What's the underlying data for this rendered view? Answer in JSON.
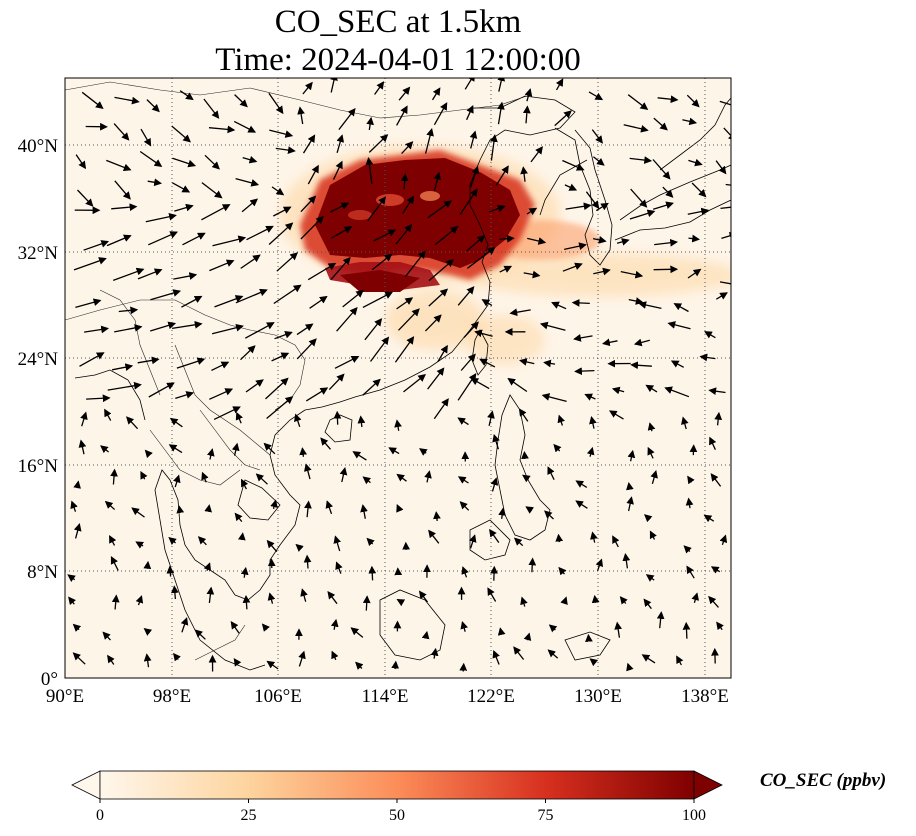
{
  "title": {
    "line1": "CO_SEC at 1.5km",
    "line2": "Time: 2024-04-01 12:00:00"
  },
  "map": {
    "variable": "CO_SEC",
    "level": "1.5km",
    "time": "2024-04-01 12:00:00",
    "lon_range": [
      90,
      140
    ],
    "lat_range": [
      0,
      45
    ],
    "gridlines": true,
    "x_ticks": [
      "90°E",
      "98°E",
      "106°E",
      "114°E",
      "122°E",
      "130°E",
      "138°E"
    ],
    "y_ticks": [
      "0°",
      "8°N",
      "16°N",
      "24°N",
      "32°N",
      "40°N"
    ],
    "overlay": "wind vectors"
  },
  "colorbar": {
    "label": "CO_SEC (ppbv)",
    "ticks": [
      "0",
      "25",
      "50",
      "75",
      "100"
    ],
    "range": [
      0,
      100
    ],
    "extend": "both",
    "colors": [
      "#fff7ec",
      "#fdd49e",
      "#fc8d59",
      "#d7301f",
      "#7f0000"
    ]
  }
}
